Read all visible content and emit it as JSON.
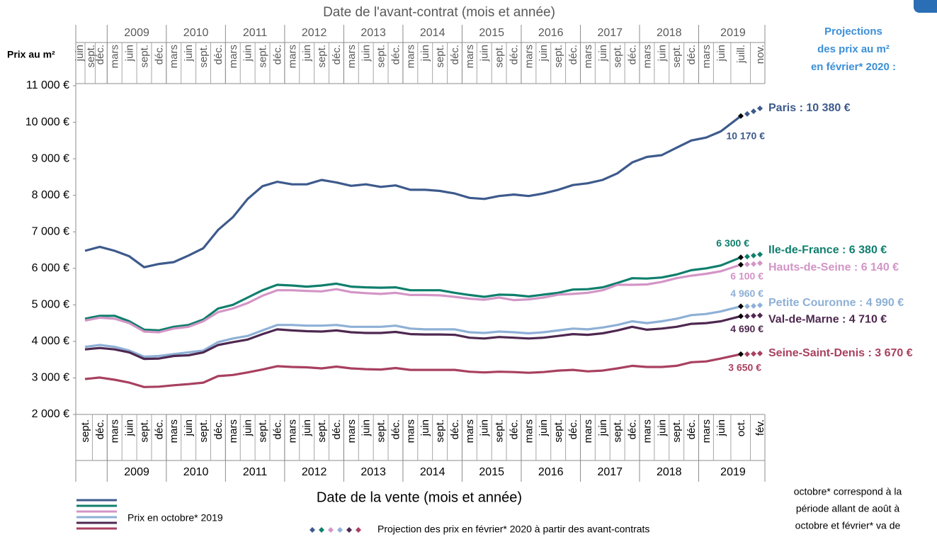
{
  "chart_data": {
    "type": "line",
    "top_title": "Date de l'avant-contrat (mois et année)",
    "x_title": "Date de la vente (mois et année)",
    "y_title": "Prix au m²",
    "side_title": [
      "Projections",
      "des prix au m²",
      "en février* 2020 :"
    ],
    "note": [
      "octobre* correspond à la",
      "période allant de août à",
      "octobre et février* va de"
    ],
    "legend": {
      "actual": "Prix en octobre* 2019",
      "projection": "Projection des prix en février* 2020 à partir des avant-contrats"
    },
    "grid": false,
    "ylim": [
      2000,
      11000
    ],
    "yticks": [
      {
        "value": 2000,
        "label": "2 000 €"
      },
      {
        "value": 3000,
        "label": "3 000 €"
      },
      {
        "value": 4000,
        "label": "4 000 €"
      },
      {
        "value": 5000,
        "label": "5 000 €"
      },
      {
        "value": 6000,
        "label": "6 000 €"
      },
      {
        "value": 7000,
        "label": "7 000 €"
      },
      {
        "value": 8000,
        "label": "8 000 €"
      },
      {
        "value": 9000,
        "label": "9 000 €"
      },
      {
        "value": 10000,
        "label": "10 000 €"
      },
      {
        "value": 11000,
        "label": "11 000 €"
      }
    ],
    "categories": [
      "sept.",
      "déc.",
      "mars",
      "juin",
      "sept.",
      "déc.",
      "mars",
      "juin",
      "sept.",
      "déc.",
      "mars",
      "juin",
      "sept.",
      "déc.",
      "mars",
      "juin",
      "sept.",
      "déc.",
      "mars",
      "juin",
      "sept.",
      "déc.",
      "mars",
      "juin",
      "sept.",
      "déc.",
      "mars",
      "juin",
      "sept.",
      "déc.",
      "mars",
      "juin",
      "sept.",
      "déc.",
      "mars",
      "juin",
      "sept.",
      "déc.",
      "mars",
      "juin",
      "sept.",
      "déc.",
      "mars",
      "juin",
      "oct.",
      null,
      null,
      "fév."
    ],
    "years": [
      "2009",
      "2010",
      "2011",
      "2012",
      "2013",
      "2014",
      "2015",
      "2016",
      "2017",
      "2018",
      "2019"
    ],
    "top_months": [
      "juin",
      "sept.",
      "déc.",
      "mars",
      "juin",
      "sept.",
      "déc.",
      "mars",
      "juin",
      "sept.",
      "déc.",
      "mars",
      "juin",
      "sept.",
      "déc.",
      "mars",
      "juin",
      "sept.",
      "déc.",
      "mars",
      "juin",
      "sept.",
      "déc.",
      "mars",
      "juin",
      "sept.",
      "déc.",
      "mars",
      "juin",
      "sept.",
      "déc.",
      "mars",
      "juin",
      "sept.",
      "déc.",
      "mars",
      "juin",
      "sept.",
      "déc.",
      "mars",
      "juin",
      "sept.",
      "déc.",
      "mars",
      "juin",
      "juill.",
      "nov."
    ],
    "top_years": [
      "2009",
      "2010",
      "2011",
      "2012",
      "2013",
      "2014",
      "2015",
      "2016",
      "2017",
      "2018",
      "2019"
    ],
    "series": [
      {
        "name": "Paris : 10 380 €",
        "color": "#3d5a8c",
        "values": [
          6480,
          6590,
          6480,
          6330,
          6030,
          6120,
          6170,
          6350,
          6550,
          7050,
          7400,
          7900,
          8250,
          8370,
          8300,
          8300,
          8420,
          8350,
          8260,
          8300,
          8230,
          8270,
          8150,
          8150,
          8120,
          8050,
          7930,
          7900,
          7980,
          8020,
          7980,
          8050,
          8150,
          8280,
          8330,
          8420,
          8600,
          8900,
          9050,
          9100,
          9300,
          9500,
          9580,
          9750,
          10170,
          null,
          null,
          null
        ],
        "value_labels": [
          null,
          null,
          null,
          null,
          null,
          null,
          null,
          null,
          null,
          null,
          null,
          null,
          null,
          null,
          null,
          null,
          null,
          null,
          null,
          null,
          null,
          null,
          null,
          null,
          null,
          null,
          null,
          null,
          null,
          null,
          null,
          null,
          null,
          null,
          null,
          null,
          null,
          null,
          null,
          null,
          null,
          null,
          null,
          null,
          "10 170 €",
          null,
          null,
          null
        ],
        "projection": [
          null,
          null,
          null,
          null,
          null,
          null,
          null,
          null,
          null,
          null,
          null,
          null,
          null,
          null,
          null,
          null,
          null,
          null,
          null,
          null,
          null,
          null,
          null,
          null,
          null,
          null,
          null,
          null,
          null,
          null,
          null,
          null,
          null,
          null,
          null,
          null,
          null,
          null,
          null,
          null,
          null,
          null,
          null,
          null,
          10170,
          10230,
          10300,
          10380
        ]
      },
      {
        "name": "Ile-de-France : 6 380 €",
        "color": "#0f7f6d",
        "values": [
          4620,
          4700,
          4700,
          4550,
          4320,
          4300,
          4400,
          4450,
          4600,
          4900,
          5000,
          5200,
          5400,
          5550,
          5530,
          5500,
          5530,
          5580,
          5500,
          5480,
          5470,
          5480,
          5400,
          5400,
          5400,
          5330,
          5270,
          5220,
          5280,
          5270,
          5230,
          5280,
          5330,
          5420,
          5430,
          5480,
          5600,
          5730,
          5720,
          5750,
          5830,
          5950,
          6000,
          6080,
          6300,
          null,
          null,
          null
        ],
        "value_labels": [
          null,
          null,
          null,
          null,
          null,
          null,
          null,
          null,
          null,
          null,
          null,
          null,
          null,
          null,
          null,
          null,
          null,
          null,
          null,
          null,
          null,
          null,
          null,
          null,
          null,
          null,
          null,
          null,
          null,
          null,
          null,
          null,
          null,
          null,
          null,
          null,
          null,
          null,
          null,
          null,
          null,
          null,
          null,
          null,
          "6 300 €",
          null,
          null,
          null
        ],
        "projection": [
          null,
          null,
          null,
          null,
          null,
          null,
          null,
          null,
          null,
          null,
          null,
          null,
          null,
          null,
          null,
          null,
          null,
          null,
          null,
          null,
          null,
          null,
          null,
          null,
          null,
          null,
          null,
          null,
          null,
          null,
          null,
          null,
          null,
          null,
          null,
          null,
          null,
          null,
          null,
          null,
          null,
          null,
          null,
          null,
          6300,
          6320,
          6350,
          6380
        ]
      },
      {
        "name": "Hauts-de-Seine : 6 140 €",
        "color": "#d395c6",
        "values": [
          4570,
          4650,
          4620,
          4500,
          4270,
          4250,
          4350,
          4400,
          4550,
          4800,
          4900,
          5050,
          5250,
          5400,
          5400,
          5380,
          5370,
          5430,
          5350,
          5320,
          5300,
          5330,
          5270,
          5270,
          5260,
          5220,
          5170,
          5140,
          5200,
          5130,
          5150,
          5200,
          5280,
          5300,
          5330,
          5400,
          5550,
          5550,
          5560,
          5630,
          5730,
          5800,
          5850,
          5920,
          6100,
          null,
          null,
          null
        ],
        "value_labels": [
          null,
          null,
          null,
          null,
          null,
          null,
          null,
          null,
          null,
          null,
          null,
          null,
          null,
          null,
          null,
          null,
          null,
          null,
          null,
          null,
          null,
          null,
          null,
          null,
          null,
          null,
          null,
          null,
          null,
          null,
          null,
          null,
          null,
          null,
          null,
          null,
          null,
          null,
          null,
          null,
          null,
          null,
          null,
          null,
          "6 100 €",
          null,
          null,
          null
        ],
        "projection": [
          null,
          null,
          null,
          null,
          null,
          null,
          null,
          null,
          null,
          null,
          null,
          null,
          null,
          null,
          null,
          null,
          null,
          null,
          null,
          null,
          null,
          null,
          null,
          null,
          null,
          null,
          null,
          null,
          null,
          null,
          null,
          null,
          null,
          null,
          null,
          null,
          null,
          null,
          null,
          null,
          null,
          null,
          null,
          null,
          6100,
          6110,
          6120,
          6140
        ]
      },
      {
        "name": "Petite Couronne : 4 990 €",
        "color": "#8eb0d6",
        "values": [
          3850,
          3900,
          3850,
          3750,
          3580,
          3600,
          3650,
          3700,
          3750,
          3980,
          4080,
          4150,
          4300,
          4450,
          4450,
          4430,
          4430,
          4450,
          4400,
          4400,
          4400,
          4430,
          4350,
          4330,
          4330,
          4330,
          4250,
          4230,
          4270,
          4250,
          4220,
          4250,
          4300,
          4350,
          4330,
          4380,
          4450,
          4550,
          4500,
          4550,
          4620,
          4720,
          4750,
          4820,
          4960,
          null,
          null,
          null
        ],
        "value_labels": [
          null,
          null,
          null,
          null,
          null,
          null,
          null,
          null,
          null,
          null,
          null,
          null,
          null,
          null,
          null,
          null,
          null,
          null,
          null,
          null,
          null,
          null,
          null,
          null,
          null,
          null,
          null,
          null,
          null,
          null,
          null,
          null,
          null,
          null,
          null,
          null,
          null,
          null,
          null,
          null,
          null,
          null,
          null,
          null,
          "4 960 €",
          null,
          null,
          null
        ],
        "projection": [
          null,
          null,
          null,
          null,
          null,
          null,
          null,
          null,
          null,
          null,
          null,
          null,
          null,
          null,
          null,
          null,
          null,
          null,
          null,
          null,
          null,
          null,
          null,
          null,
          null,
          null,
          null,
          null,
          null,
          null,
          null,
          null,
          null,
          null,
          null,
          null,
          null,
          null,
          null,
          null,
          null,
          null,
          null,
          null,
          4960,
          4960,
          4970,
          4990
        ]
      },
      {
        "name": "Val-de-Marne : 4 710 €",
        "color": "#4e2850",
        "values": [
          3780,
          3820,
          3780,
          3700,
          3520,
          3530,
          3600,
          3620,
          3700,
          3900,
          3980,
          4050,
          4200,
          4330,
          4300,
          4280,
          4270,
          4300,
          4250,
          4230,
          4230,
          4260,
          4200,
          4190,
          4190,
          4180,
          4100,
          4080,
          4120,
          4100,
          4080,
          4100,
          4150,
          4200,
          4180,
          4220,
          4300,
          4400,
          4320,
          4350,
          4400,
          4480,
          4500,
          4550,
          4690,
          null,
          null,
          null
        ],
        "value_labels": [
          null,
          null,
          null,
          null,
          null,
          null,
          null,
          null,
          null,
          null,
          null,
          null,
          null,
          null,
          null,
          null,
          null,
          null,
          null,
          null,
          null,
          null,
          null,
          null,
          null,
          null,
          null,
          null,
          null,
          null,
          null,
          null,
          null,
          null,
          null,
          null,
          null,
          null,
          null,
          null,
          null,
          null,
          null,
          null,
          "4 690 €",
          null,
          null,
          null
        ],
        "projection": [
          null,
          null,
          null,
          null,
          null,
          null,
          null,
          null,
          null,
          null,
          null,
          null,
          null,
          null,
          null,
          null,
          null,
          null,
          null,
          null,
          null,
          null,
          null,
          null,
          null,
          null,
          null,
          null,
          null,
          null,
          null,
          null,
          null,
          null,
          null,
          null,
          null,
          null,
          null,
          null,
          null,
          null,
          null,
          null,
          4690,
          4690,
          4700,
          4710
        ]
      },
      {
        "name": "Seine-Saint-Denis : 3 670 €",
        "color": "#a8405f",
        "values": [
          2970,
          3010,
          2950,
          2870,
          2750,
          2760,
          2800,
          2830,
          2870,
          3050,
          3080,
          3150,
          3230,
          3320,
          3300,
          3290,
          3260,
          3310,
          3260,
          3240,
          3230,
          3270,
          3220,
          3220,
          3220,
          3220,
          3170,
          3150,
          3170,
          3160,
          3140,
          3160,
          3200,
          3220,
          3180,
          3200,
          3260,
          3330,
          3300,
          3300,
          3330,
          3430,
          3450,
          3530,
          3650,
          null,
          null,
          null
        ],
        "value_labels": [
          null,
          null,
          null,
          null,
          null,
          null,
          null,
          null,
          null,
          null,
          null,
          null,
          null,
          null,
          null,
          null,
          null,
          null,
          null,
          null,
          null,
          null,
          null,
          null,
          null,
          null,
          null,
          null,
          null,
          null,
          null,
          null,
          null,
          null,
          null,
          null,
          null,
          null,
          null,
          null,
          null,
          null,
          null,
          null,
          "3 650 €",
          null,
          null,
          null
        ],
        "projection": [
          null,
          null,
          null,
          null,
          null,
          null,
          null,
          null,
          null,
          null,
          null,
          null,
          null,
          null,
          null,
          null,
          null,
          null,
          null,
          null,
          null,
          null,
          null,
          null,
          null,
          null,
          null,
          null,
          null,
          null,
          null,
          null,
          null,
          null,
          null,
          null,
          null,
          null,
          null,
          null,
          null,
          null,
          null,
          null,
          3650,
          3650,
          3660,
          3670
        ]
      }
    ]
  }
}
